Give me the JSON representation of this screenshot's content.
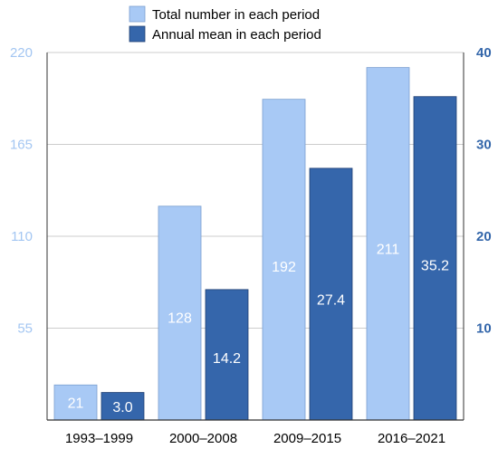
{
  "chart_data": {
    "type": "bar",
    "categories": [
      "1993–1999",
      "2000–2008",
      "2009–2015",
      "2016–2021"
    ],
    "series": [
      {
        "name": "Total number in each period",
        "values": [
          21,
          128,
          192,
          211
        ],
        "labels": [
          "21",
          "128",
          "192",
          "211"
        ],
        "axis": "left",
        "color": "#a8c9f5",
        "border": "#7a9fd0"
      },
      {
        "name": "Annual mean in each period",
        "values": [
          3.0,
          14.2,
          27.4,
          35.2
        ],
        "labels": [
          "3.0",
          "14.2",
          "27.4",
          "35.2"
        ],
        "axis": "right",
        "color": "#3566ab",
        "border": "#1f3f73"
      }
    ],
    "left_axis": {
      "ylim": [
        0,
        220
      ],
      "ticks": [
        55,
        110,
        165,
        220
      ],
      "tick_labels": [
        "55",
        "110",
        "165",
        "220"
      ],
      "color": "#a3c6f2"
    },
    "right_axis": {
      "ylim": [
        0,
        40
      ],
      "ticks": [
        10,
        20,
        30,
        40
      ],
      "tick_labels": [
        "10",
        "20",
        "30",
        "40"
      ],
      "color": "#3366aa"
    },
    "legend": "top-center",
    "grid": true,
    "grid_color": "#cccccc"
  }
}
